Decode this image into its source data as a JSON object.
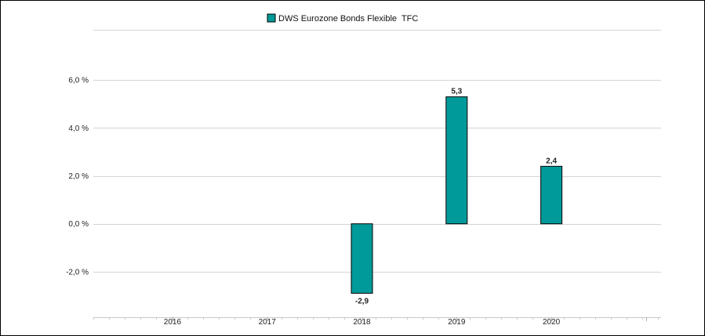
{
  "chart_data": {
    "type": "bar",
    "categories": [
      "2016",
      "2017",
      "2018",
      "2019",
      "2020"
    ],
    "series": [
      {
        "name": "DWS Eurozone Bonds Flexible  TFC",
        "values": [
          null,
          null,
          -2.9,
          5.3,
          2.4
        ],
        "labels": [
          "",
          "",
          "-2,9",
          "5,3",
          "2,4"
        ],
        "color": "#009a9a"
      }
    ],
    "yticks": [
      -2.0,
      0.0,
      2.0,
      4.0,
      6.0
    ],
    "ytick_labels": [
      "-2,0 %",
      "0,0 %",
      "2,0 %",
      "4,0 %",
      "6,0 %"
    ],
    "ylim": [
      -3.9,
      8.1
    ],
    "grid": true,
    "legend_position": "top-center",
    "bar_edge_color": "#000000",
    "grid_color": "#d4d4d4",
    "title": "",
    "xlabel": "",
    "ylabel": ""
  }
}
